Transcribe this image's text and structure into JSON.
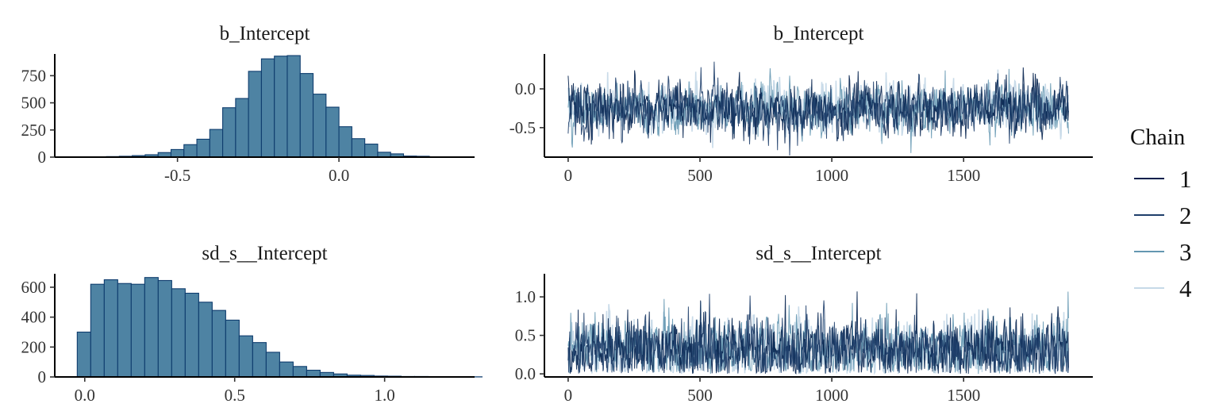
{
  "legend": {
    "title": "Chain",
    "entries": [
      {
        "label": "1",
        "color": "#011f4b"
      },
      {
        "label": "2",
        "color": "#1f3f6b"
      },
      {
        "label": "3",
        "color": "#6497b1"
      },
      {
        "label": "4",
        "color": "#c6d9e8"
      }
    ]
  },
  "colors": {
    "hist_fill": "#4e83a3",
    "hist_stroke": "#0f3d6e",
    "trace_band": "#c3d8e7"
  },
  "chart_data": [
    {
      "type": "bar",
      "title": "b_Intercept",
      "xlim": [
        -0.88,
        0.42
      ],
      "ylim": [
        0,
        950
      ],
      "x_ticks": [
        {
          "v": -0.5,
          "label": "-0.5"
        },
        {
          "v": 0.0,
          "label": "0.0"
        }
      ],
      "y_ticks": [
        {
          "v": 0,
          "label": "0"
        },
        {
          "v": 250,
          "label": "250"
        },
        {
          "v": 500,
          "label": "500"
        },
        {
          "v": 750,
          "label": "750"
        }
      ],
      "bin_start": -0.8,
      "bin_width": 0.04,
      "values": [
        2,
        3,
        5,
        8,
        14,
        22,
        42,
        70,
        115,
        165,
        255,
        455,
        540,
        790,
        905,
        930,
        935,
        770,
        580,
        460,
        280,
        170,
        120,
        45,
        30,
        10,
        8,
        3,
        2,
        1
      ]
    },
    {
      "type": "line",
      "title": "b_Intercept",
      "xlim": [
        -90,
        1990
      ],
      "ylim": [
        -0.88,
        0.45
      ],
      "x_ticks": [
        {
          "v": 0,
          "label": "0"
        },
        {
          "v": 500,
          "label": "500"
        },
        {
          "v": 1000,
          "label": "1000"
        },
        {
          "v": 1500,
          "label": "1500"
        }
      ],
      "y_ticks": [
        {
          "v": -0.5,
          "label": "-0.5"
        },
        {
          "v": 0.0,
          "label": "0.0"
        }
      ],
      "n_iter": 1900,
      "series": [
        {
          "name": "1",
          "mean": -0.25,
          "sd": 0.16
        },
        {
          "name": "2",
          "mean": -0.25,
          "sd": 0.16
        },
        {
          "name": "3",
          "mean": -0.25,
          "sd": 0.15
        },
        {
          "name": "4",
          "mean": -0.25,
          "sd": 0.15
        }
      ]
    },
    {
      "type": "bar",
      "title": "sd_s__Intercept",
      "xlim": [
        -0.1,
        1.3
      ],
      "ylim": [
        0,
        690
      ],
      "x_ticks": [
        {
          "v": 0.0,
          "label": "0.0"
        },
        {
          "v": 0.5,
          "label": "0.5"
        },
        {
          "v": 1.0,
          "label": "1.0"
        }
      ],
      "y_ticks": [
        {
          "v": 0,
          "label": "0"
        },
        {
          "v": 200,
          "label": "200"
        },
        {
          "v": 400,
          "label": "400"
        },
        {
          "v": 600,
          "label": "600"
        }
      ],
      "bin_start": -0.025,
      "bin_width": 0.045,
      "values": [
        300,
        620,
        650,
        625,
        620,
        665,
        645,
        590,
        560,
        500,
        445,
        380,
        275,
        230,
        165,
        100,
        70,
        45,
        30,
        20,
        12,
        10,
        6,
        5,
        3,
        3,
        2,
        2,
        1,
        1
      ]
    },
    {
      "type": "line",
      "title": "sd_s__Intercept",
      "xlim": [
        -90,
        1990
      ],
      "ylim": [
        -0.04,
        1.3
      ],
      "x_ticks": [
        {
          "v": 0,
          "label": "0"
        },
        {
          "v": 500,
          "label": "500"
        },
        {
          "v": 1000,
          "label": "1000"
        },
        {
          "v": 1500,
          "label": "1500"
        }
      ],
      "y_ticks": [
        {
          "v": 0.0,
          "label": "0.0"
        },
        {
          "v": 0.5,
          "label": "0.5"
        },
        {
          "v": 1.0,
          "label": "1.0"
        }
      ],
      "n_iter": 1900,
      "series": [
        {
          "name": "1",
          "mean": 0.3,
          "sd": 0.2
        },
        {
          "name": "2",
          "mean": 0.3,
          "sd": 0.2
        },
        {
          "name": "3",
          "mean": 0.3,
          "sd": 0.2
        },
        {
          "name": "4",
          "mean": 0.3,
          "sd": 0.2
        }
      ]
    }
  ]
}
